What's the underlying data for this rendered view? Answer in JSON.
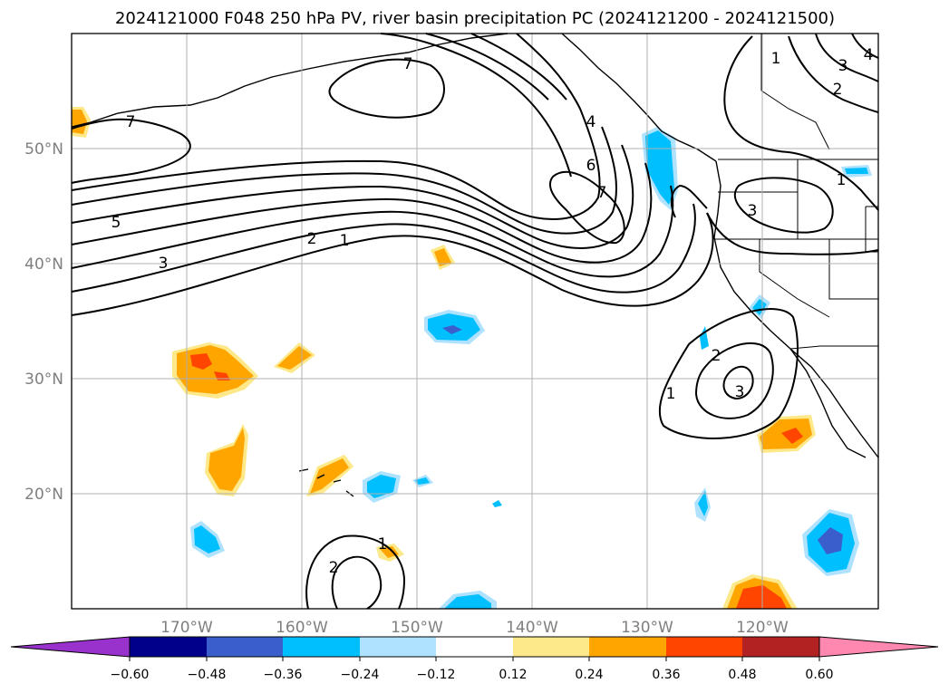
{
  "title": "2024121000 F048 250 hPa PV, river basin precipitation PC (2024121200 - 2024121500)",
  "map": {
    "lon_ticks": [
      "170°W",
      "160°W",
      "150°W",
      "140°W",
      "130°W",
      "120°W"
    ],
    "lat_ticks": [
      "20°N",
      "30°N",
      "40°N",
      "50°N"
    ],
    "extent": {
      "lon": [
        -180,
        -110
      ],
      "lat": [
        10,
        60
      ]
    },
    "gridlines": true,
    "contour_labels": [
      "7",
      "7",
      "5",
      "3",
      "2",
      "1",
      "4",
      "6",
      "7",
      "1",
      "2",
      "3",
      "4",
      "1",
      "3",
      "1",
      "2",
      "3",
      "1",
      "2"
    ]
  },
  "colorbar": {
    "ticks": [
      "−0.60",
      "−0.48",
      "−0.36",
      "−0.24",
      "−0.12",
      "0.12",
      "0.24",
      "0.36",
      "0.48",
      "0.60"
    ],
    "colors": [
      "#9932cc",
      "#00008b",
      "#3a5fcd",
      "#00bfff",
      "#aee2ff",
      "#ffffff",
      "#fde88a",
      "#ffa500",
      "#ff4500",
      "#b22222",
      "#ff88b0"
    ]
  },
  "colors": {
    "neg_strong": "#3a5fcd",
    "neg": "#00bfff",
    "neg_light": "#aee2ff",
    "pos_light": "#fde88a",
    "pos": "#ffa500",
    "pos_strong": "#ff4500"
  }
}
